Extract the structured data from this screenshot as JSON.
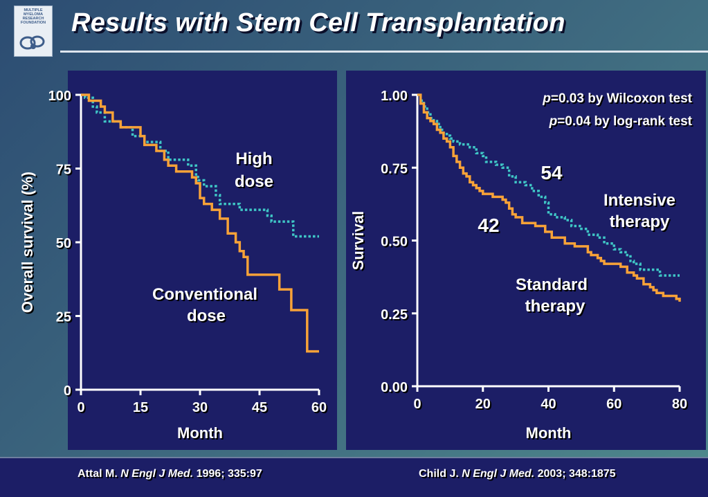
{
  "title": "Results with Stem Cell Transplantation",
  "logo": {
    "text_lines": [
      "MULTIPLE",
      "MYELOMA",
      "RESEARCH",
      "FOUNDATION"
    ]
  },
  "colors": {
    "background_panel": "#1c1e66",
    "conventional": "#f7a238",
    "high_dose": "#3fc6c6",
    "axis": "#ffffff"
  },
  "chart_data": [
    {
      "type": "line",
      "step": true,
      "xlabel": "Month",
      "ylabel": "Overall survival (%)",
      "xlim": [
        0,
        60
      ],
      "ylim": [
        0,
        100
      ],
      "xticks": [
        "0",
        "15",
        "30",
        "45",
        "60"
      ],
      "yticks": [
        "0",
        "25",
        "50",
        "75",
        "100"
      ],
      "series": [
        {
          "name": "High dose",
          "label_lines": [
            "High",
            "dose"
          ],
          "style": "dotted",
          "color": "#3fc6c6",
          "points": [
            [
              0,
              100
            ],
            [
              1,
              99
            ],
            [
              3,
              96
            ],
            [
              4,
              94
            ],
            [
              6,
              91
            ],
            [
              10,
              89
            ],
            [
              13,
              86
            ],
            [
              16,
              84
            ],
            [
              20,
              81
            ],
            [
              22,
              78
            ],
            [
              27,
              76
            ],
            [
              29,
              73
            ],
            [
              29.5,
              71
            ],
            [
              31,
              69
            ],
            [
              34,
              66
            ],
            [
              35,
              63
            ],
            [
              40,
              61
            ],
            [
              47,
              59
            ],
            [
              48,
              57
            ],
            [
              53,
              57
            ],
            [
              53.5,
              52
            ],
            [
              60,
              52
            ]
          ]
        },
        {
          "name": "Conventional dose",
          "label_lines": [
            "Conventional",
            "dose"
          ],
          "style": "solid",
          "color": "#f7a238",
          "points": [
            [
              0,
              100
            ],
            [
              2,
              98
            ],
            [
              4,
              98
            ],
            [
              5,
              96
            ],
            [
              6,
              94
            ],
            [
              8,
              91
            ],
            [
              10,
              89
            ],
            [
              15,
              86
            ],
            [
              16,
              83
            ],
            [
              19,
              81
            ],
            [
              21,
              78
            ],
            [
              22,
              76
            ],
            [
              24,
              74
            ],
            [
              28,
              72
            ],
            [
              29,
              70
            ],
            [
              30,
              65
            ],
            [
              31,
              63
            ],
            [
              33,
              61
            ],
            [
              35,
              58
            ],
            [
              37,
              53
            ],
            [
              39,
              50
            ],
            [
              40,
              47
            ],
            [
              41,
              45
            ],
            [
              42,
              39
            ],
            [
              49,
              39
            ],
            [
              50,
              34
            ],
            [
              52,
              34
            ],
            [
              53,
              27
            ],
            [
              56,
              27
            ],
            [
              57,
              13
            ],
            [
              60,
              13
            ]
          ]
        }
      ],
      "source": {
        "author": "Attal M.",
        "journal": "N Engl J Med.",
        "detail": "1996; 335:97"
      }
    },
    {
      "type": "line",
      "step": true,
      "xlabel": "Month",
      "ylabel": "Survival",
      "xlim": [
        0,
        80
      ],
      "ylim": [
        0,
        1
      ],
      "xticks": [
        "0",
        "20",
        "40",
        "60",
        "80"
      ],
      "yticks": [
        "0.00",
        "0.25",
        "0.50",
        "0.75",
        "1.00"
      ],
      "annotations": [
        {
          "p": "p",
          "text": "=0.03 by Wilcoxon test"
        },
        {
          "p": "p",
          "text": "=0.04 by log-rank test"
        }
      ],
      "series": [
        {
          "name": "Intensive therapy",
          "label_lines": [
            "Intensive",
            "therapy"
          ],
          "n": "54",
          "style": "dotted",
          "color": "#3fc6c6",
          "points": [
            [
              0,
              1.0
            ],
            [
              1,
              0.98
            ],
            [
              2,
              0.96
            ],
            [
              3,
              0.94
            ],
            [
              4,
              0.92
            ],
            [
              5,
              0.91
            ],
            [
              6,
              0.9
            ],
            [
              7,
              0.88
            ],
            [
              8,
              0.87
            ],
            [
              9,
              0.86
            ],
            [
              10,
              0.85
            ],
            [
              11,
              0.84
            ],
            [
              13,
              0.83
            ],
            [
              16,
              0.82
            ],
            [
              18,
              0.8
            ],
            [
              20,
              0.79
            ],
            [
              21,
              0.77
            ],
            [
              24,
              0.76
            ],
            [
              26,
              0.75
            ],
            [
              28,
              0.72
            ],
            [
              30,
              0.7
            ],
            [
              33,
              0.69
            ],
            [
              35,
              0.67
            ],
            [
              37,
              0.65
            ],
            [
              39,
              0.63
            ],
            [
              40,
              0.59
            ],
            [
              42,
              0.58
            ],
            [
              45,
              0.57
            ],
            [
              47,
              0.55
            ],
            [
              50,
              0.54
            ],
            [
              52,
              0.52
            ],
            [
              55,
              0.51
            ],
            [
              57,
              0.49
            ],
            [
              60,
              0.47
            ],
            [
              62,
              0.46
            ],
            [
              64,
              0.45
            ],
            [
              65,
              0.43
            ],
            [
              66,
              0.42
            ],
            [
              68,
              0.4
            ],
            [
              73,
              0.4
            ],
            [
              74,
              0.38
            ],
            [
              80,
              0.38
            ]
          ]
        },
        {
          "name": "Standard therapy",
          "label_lines": [
            "Standard",
            "therapy"
          ],
          "n": "42",
          "style": "solid",
          "color": "#f7a238",
          "points": [
            [
              0,
              1.0
            ],
            [
              1,
              0.97
            ],
            [
              2,
              0.94
            ],
            [
              3,
              0.92
            ],
            [
              4,
              0.91
            ],
            [
              5,
              0.9
            ],
            [
              6,
              0.88
            ],
            [
              7,
              0.87
            ],
            [
              8,
              0.85
            ],
            [
              9,
              0.84
            ],
            [
              10,
              0.82
            ],
            [
              11,
              0.79
            ],
            [
              12,
              0.77
            ],
            [
              13,
              0.75
            ],
            [
              14,
              0.73
            ],
            [
              15,
              0.72
            ],
            [
              16,
              0.7
            ],
            [
              17,
              0.69
            ],
            [
              18,
              0.68
            ],
            [
              19,
              0.67
            ],
            [
              20,
              0.66
            ],
            [
              22,
              0.66
            ],
            [
              23,
              0.65
            ],
            [
              26,
              0.64
            ],
            [
              27,
              0.63
            ],
            [
              28,
              0.61
            ],
            [
              29,
              0.59
            ],
            [
              30,
              0.58
            ],
            [
              32,
              0.56
            ],
            [
              35,
              0.56
            ],
            [
              36,
              0.55
            ],
            [
              38,
              0.55
            ],
            [
              39,
              0.53
            ],
            [
              41,
              0.51
            ],
            [
              44,
              0.51
            ],
            [
              45,
              0.49
            ],
            [
              48,
              0.48
            ],
            [
              51,
              0.48
            ],
            [
              52,
              0.46
            ],
            [
              53,
              0.45
            ],
            [
              55,
              0.44
            ],
            [
              56,
              0.43
            ],
            [
              57,
              0.42
            ],
            [
              62,
              0.41
            ],
            [
              64,
              0.39
            ],
            [
              66,
              0.38
            ],
            [
              67,
              0.37
            ],
            [
              69,
              0.35
            ],
            [
              71,
              0.34
            ],
            [
              72,
              0.33
            ],
            [
              73,
              0.32
            ],
            [
              75,
              0.31
            ],
            [
              78,
              0.31
            ],
            [
              79,
              0.3
            ],
            [
              80,
              0.29
            ]
          ]
        }
      ],
      "source": {
        "author": "Child J.",
        "journal": "N Engl J Med.",
        "detail": "2003; 348:1875"
      }
    }
  ]
}
